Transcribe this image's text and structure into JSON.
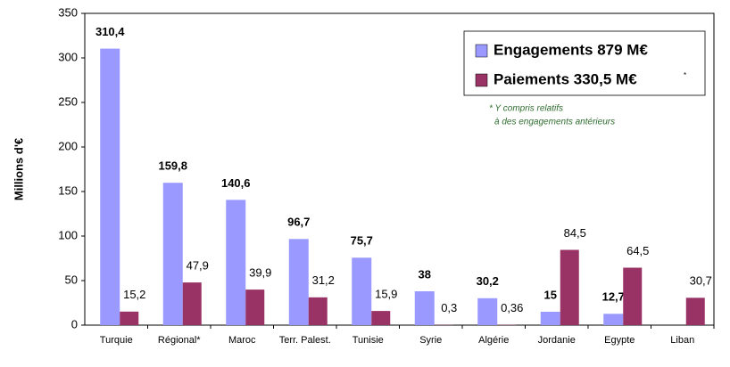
{
  "chart_data": {
    "type": "bar",
    "y_label": "Millions d'€",
    "categories": [
      "Turquie",
      "Régional*",
      "Maroc",
      "Terr. Palest.",
      "Tunisie",
      "Syrie",
      "Algérie",
      "Jordanie",
      "Egypte",
      "Liban"
    ],
    "series": [
      {
        "name": "Engagements 879 M€",
        "color": "#9999ff",
        "values": [
          310.4,
          159.8,
          140.6,
          96.7,
          75.7,
          38,
          30.2,
          15,
          12.7,
          null
        ],
        "value_labels": [
          "310,4",
          "159,8",
          "140,6",
          "96,7",
          "75,7",
          "38",
          "30,2",
          "15",
          "12,7",
          null
        ]
      },
      {
        "name": "Paiements 330,5 M€",
        "color": "#993366",
        "values": [
          15.2,
          47.9,
          39.9,
          31.2,
          15.9,
          0.3,
          0.36,
          84.5,
          64.5,
          30.7
        ],
        "value_labels": [
          "15,2",
          "47,9",
          "39,9",
          "31,2",
          "15,9",
          "0,3",
          "0,36",
          "84,5",
          "64,5",
          "30,7"
        ]
      }
    ],
    "legend_mark": "*",
    "note": [
      "* Y compris relatifs",
      "à des engagements antérieurs"
    ],
    "ylim": [
      0,
      350
    ],
    "yticks": [
      0,
      50,
      100,
      150,
      200,
      250,
      300,
      350
    ],
    "grid": false,
    "legend": "upper right"
  }
}
